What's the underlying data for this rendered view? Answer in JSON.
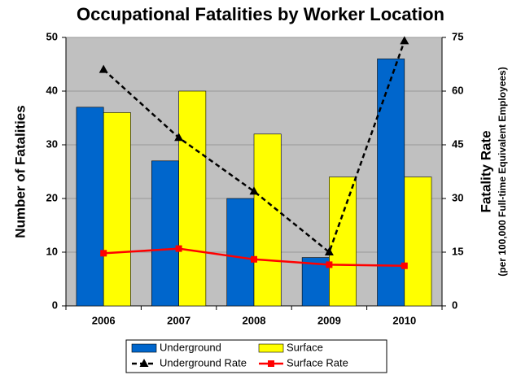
{
  "chart_data": {
    "type": "bar",
    "title": "Occupational Fatalities by Worker Location",
    "ylabel": "Number of Fatalities",
    "y2label": "Fatality Rate",
    "y2label_note": "(per 100,000 Full-time Equivalent Employees)",
    "categories": [
      "2006",
      "2007",
      "2008",
      "2009",
      "2010"
    ],
    "series": [
      {
        "name": "Underground",
        "type": "bar",
        "color": "#0066cc",
        "values": [
          37,
          27,
          20,
          9,
          46
        ]
      },
      {
        "name": "Surface",
        "type": "bar",
        "color": "#ffff00",
        "values": [
          36,
          40,
          32,
          24,
          24
        ]
      },
      {
        "name": "Underground Rate",
        "type": "line",
        "axis": "y2",
        "color": "#000000",
        "dashed": true,
        "marker": "triangle",
        "values": [
          66,
          47,
          32,
          15,
          74
        ]
      },
      {
        "name": "Surface Rate",
        "type": "line",
        "axis": "y2",
        "color": "#ff0000",
        "dashed": false,
        "marker": "square",
        "values": [
          14.7,
          16,
          13,
          11.5,
          11.2
        ]
      }
    ],
    "ylim": [
      0,
      50
    ],
    "yticks": [
      0,
      10,
      20,
      30,
      40,
      50
    ],
    "y2lim": [
      0,
      75
    ],
    "y2ticks": [
      0,
      15,
      30,
      45,
      60,
      75
    ],
    "grid": true
  }
}
